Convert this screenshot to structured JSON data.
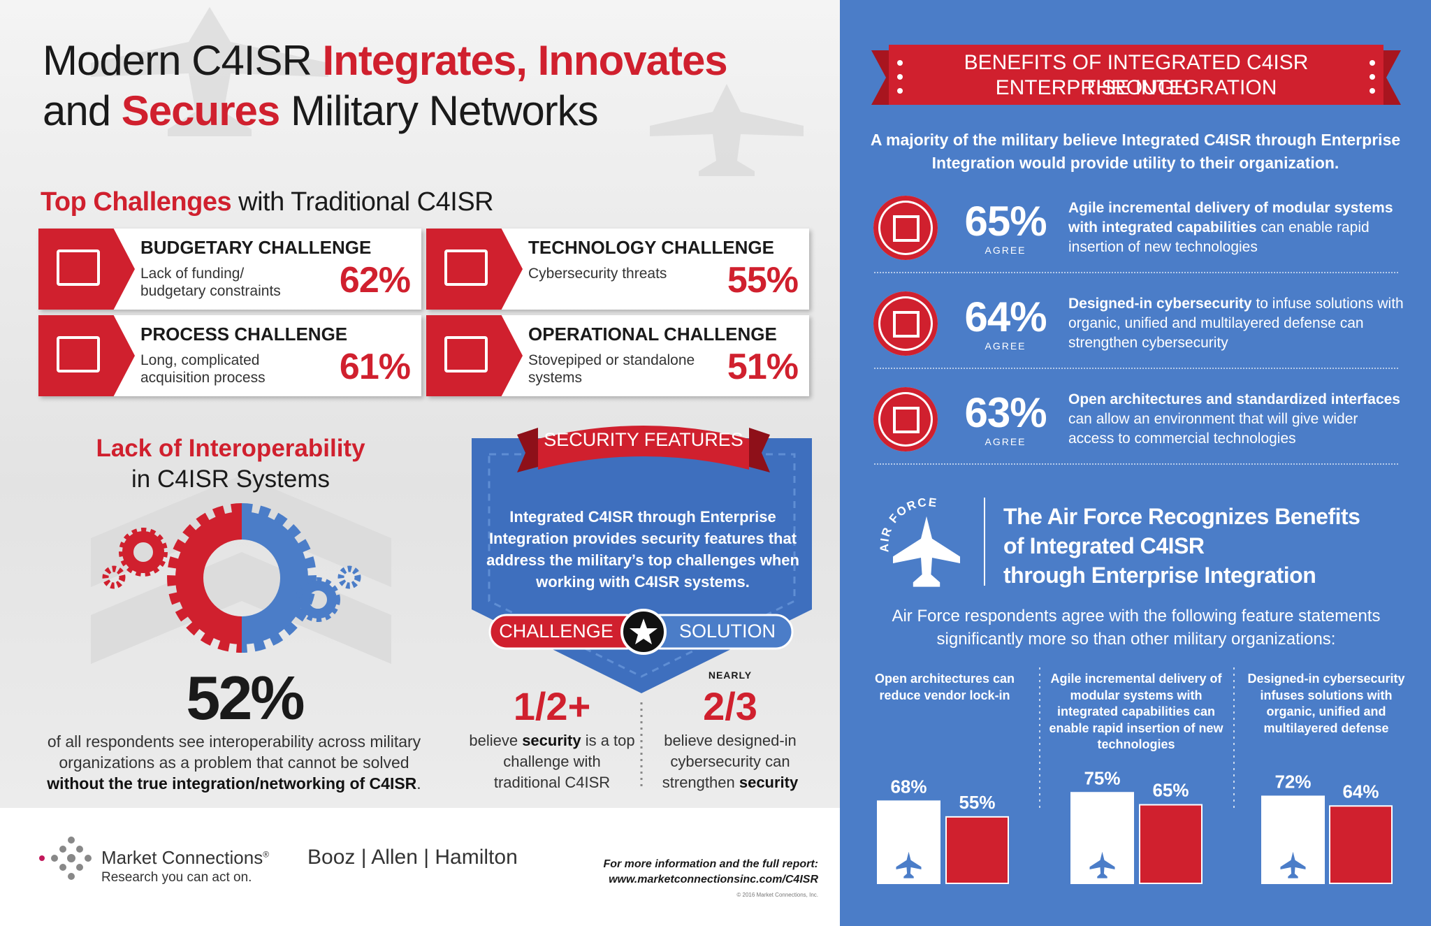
{
  "header": {
    "title_line1": [
      "Modern C4ISR",
      "Integrates, Innovates"
    ],
    "title_line2": [
      "and",
      "Secures",
      "Military Networks"
    ]
  },
  "challenges": {
    "heading": [
      "Top Challenges",
      "with Traditional C4ISR"
    ],
    "items": [
      {
        "title": "BUDGETARY CHALLENGE",
        "description": "Lack of funding/ budgetary constraints",
        "percent": "62%"
      },
      {
        "title": "TECHNOLOGY CHALLENGE",
        "description": "Cybersecurity threats",
        "percent": "55%"
      },
      {
        "title": "PROCESS CHALLENGE",
        "description": "Long, complicated acquisition process",
        "percent": "61%"
      },
      {
        "title": "OPERATIONAL CHALLENGE",
        "description": "Stovepiped or standalone systems",
        "percent": "51%"
      }
    ]
  },
  "interoperability": {
    "heading": "Lack of Interoperability",
    "subheading": "in C4ISR Systems",
    "percent": "52%",
    "description": [
      "of all respondents see interoperability across military organizations as a problem that cannot be solved",
      "without the true integration/networking of C4ISR",
      "."
    ]
  },
  "security": {
    "banner": "SECURITY FEATURES",
    "text": "Integrated C4ISR through Enterprise Integration provides security features that address the military’s top challenges when working with C4ISR systems.",
    "challenge": "CHALLENGE",
    "solution": "SOLUTION",
    "stats": [
      {
        "value": "1/2+",
        "text": [
          "believe",
          "security",
          "is a top challenge with traditional C4ISR"
        ]
      },
      {
        "qualifier": "NEARLY",
        "value": "2/3",
        "text": [
          "believe designed-in cybersecurity can strengthen",
          "security"
        ]
      }
    ]
  },
  "footer": {
    "brand": "Market Connections",
    "registered": "®",
    "tagline": "Research you can act on.",
    "partner": [
      "Booz",
      "Allen",
      "Hamilton"
    ],
    "more_info": "For more information and the full report:",
    "url": "www.marketconnectionsinc.com/C4ISR",
    "copyright": "© 2016 Market Connections, Inc."
  },
  "benefits": {
    "banner": [
      "BENEFITS OF INTEGRATED C4ISR THROUGH",
      "ENTERPRISE INTEGRATION"
    ],
    "intro": "A majority of the military believe Integrated C4ISR through Enterprise Integration would provide utility to their organization.",
    "items": [
      {
        "percent": "65%",
        "label": "AGREE",
        "highlight": "Agile incremental delivery of modular systems with integrated capabilities",
        "text": "can enable rapid insertion of new technologies"
      },
      {
        "percent": "64%",
        "label": "AGREE",
        "highlight": "Designed-in cybersecurity",
        "text": "to infuse solutions with organic, unified and multilayered defense can strengthen cybersecurity"
      },
      {
        "percent": "63%",
        "label": "AGREE",
        "highlight": "Open architectures and standardized interfaces",
        "text": "can allow an environment that will give wider access to commercial technologies"
      }
    ]
  },
  "air_force": {
    "badge": "AIR FORCE",
    "heading": [
      "The Air Force Recognizes Benefits",
      "of Integrated C4ISR",
      "through Enterprise Integration"
    ],
    "subtext": "Air Force respondents agree with the following feature statements significantly more so than other military organizations:",
    "charts": [
      {
        "label": "Open architectures can reduce vendor lock-in",
        "values": [
          68,
          55
        ],
        "value_labels": [
          "68%",
          "55%"
        ]
      },
      {
        "label": "Agile incremental delivery of modular systems with integrated capabilities can enable rapid insertion of new technologies",
        "values": [
          75,
          65
        ],
        "value_labels": [
          "75%",
          "65%"
        ]
      },
      {
        "label": "Designed-in cybersecurity infuses solutions with organic, unified and multilayered defense",
        "values": [
          72,
          64
        ],
        "value_labels": [
          "72%",
          "64%"
        ]
      }
    ]
  }
}
